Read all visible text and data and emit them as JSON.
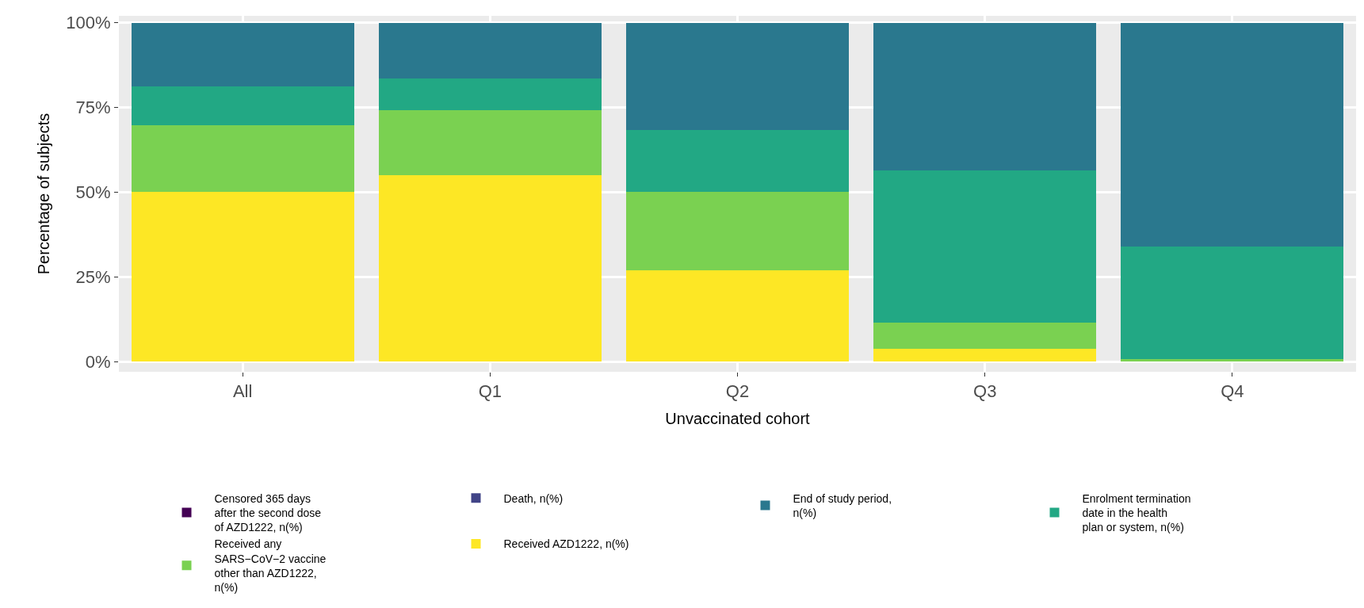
{
  "chart_data": {
    "type": "bar",
    "stacked": true,
    "categories": [
      "All",
      "Q1",
      "Q2",
      "Q3",
      "Q4"
    ],
    "xlabel": "Unvaccinated cohort",
    "ylabel": "Percentage of subjects",
    "ylim": [
      -3,
      102
    ],
    "yticks": [
      {
        "value": 0,
        "label": "0%"
      },
      {
        "value": 25,
        "label": "25%"
      },
      {
        "value": 50,
        "label": "50%"
      },
      {
        "value": 75,
        "label": "75%"
      },
      {
        "value": 100,
        "label": "100%"
      }
    ],
    "grid": true,
    "legend": "bottom",
    "series": [
      {
        "name": "Received AZD1222, n(%)",
        "color": "#fde725",
        "values": [
          50.1,
          55.0,
          26.9,
          3.8,
          0
        ]
      },
      {
        "name": "Received any SARS−CoV−2 vaccine other than AZD1222, n(%)",
        "color": "#7ad151",
        "values": [
          19.7,
          19.2,
          23.2,
          7.7,
          0.8
        ]
      },
      {
        "name": "Enrolment termination date in the health plan or system, n(%)",
        "color": "#22a884",
        "values": [
          11.3,
          9.4,
          18.2,
          45.0,
          33.2
        ]
      },
      {
        "name": "End of study period, n(%)",
        "color": "#2a788e",
        "values": [
          18.9,
          16.4,
          31.7,
          43.5,
          66.0
        ]
      },
      {
        "name": "Death, n(%)",
        "color": "#414487",
        "values": [
          0,
          0,
          0,
          0,
          0
        ]
      },
      {
        "name": "Censored 365 days after the second dose of AZD1222, n(%)",
        "color": "#440154",
        "values": [
          0,
          0,
          0,
          0,
          0
        ]
      }
    ]
  }
}
